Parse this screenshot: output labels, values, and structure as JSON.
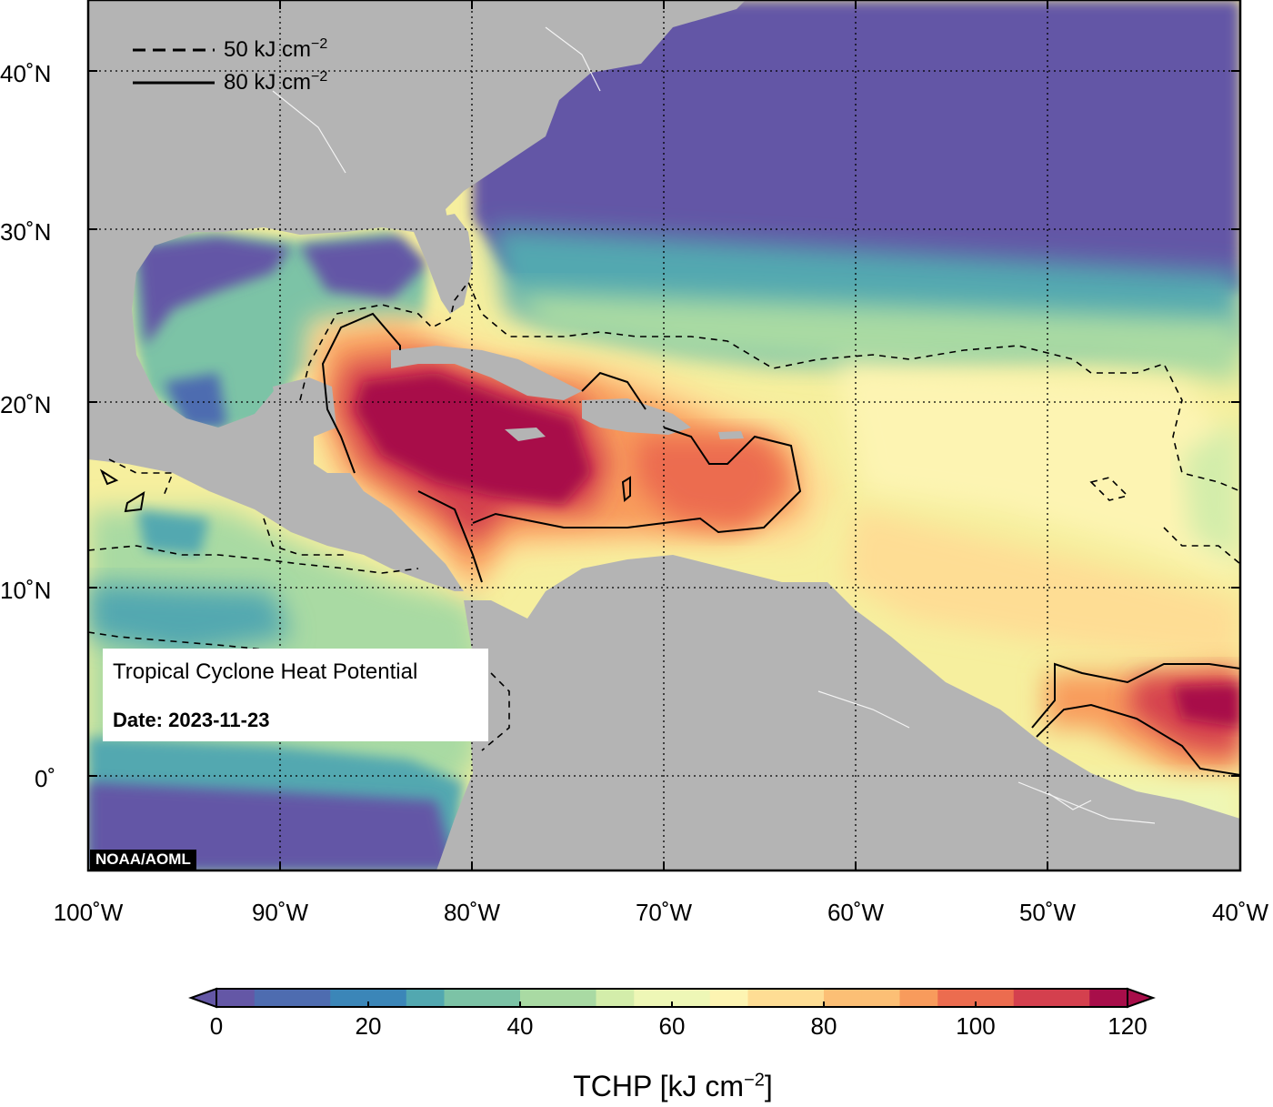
{
  "map": {
    "type": "contour-map",
    "info_title": "Tropical Cyclone Heat Potential",
    "date_label": "Date: 2023-11-23",
    "credit": "NOAA/AOML",
    "lon_ticks": [
      "100˚W",
      "90˚W",
      "80˚W",
      "70˚W",
      "60˚W",
      "50˚W",
      "40˚W"
    ],
    "lat_ticks": [
      "40˚N",
      "30˚N",
      "20˚N",
      "10˚N",
      "0˚"
    ],
    "lon_range": [
      -100,
      -40
    ],
    "lat_range": [
      -5,
      44
    ],
    "legend": [
      {
        "style": "dashed",
        "value_text": "50 kJ cm",
        "exp": "−2"
      },
      {
        "style": "solid",
        "value_text": "80 kJ cm",
        "exp": "−2"
      }
    ],
    "colors": {
      "land": "#b4b4b4",
      "scale": [
        "#6457a6",
        "#4e6cb0",
        "#3b86b8",
        "#52a8b0",
        "#7cc3a6",
        "#a9daa3",
        "#d3edaa",
        "#eef7b6",
        "#fdf4b2",
        "#fedd94",
        "#fcbf75",
        "#f89b5c",
        "#ec6c4f",
        "#d4404e",
        "#a80e4a"
      ]
    }
  },
  "colorbar": {
    "ticks": [
      "0",
      "20",
      "40",
      "60",
      "80",
      "100",
      "120"
    ],
    "range": [
      0,
      120
    ],
    "label": "TCHP [kJ cm",
    "label_exp": "−2",
    "label_end": "]"
  }
}
